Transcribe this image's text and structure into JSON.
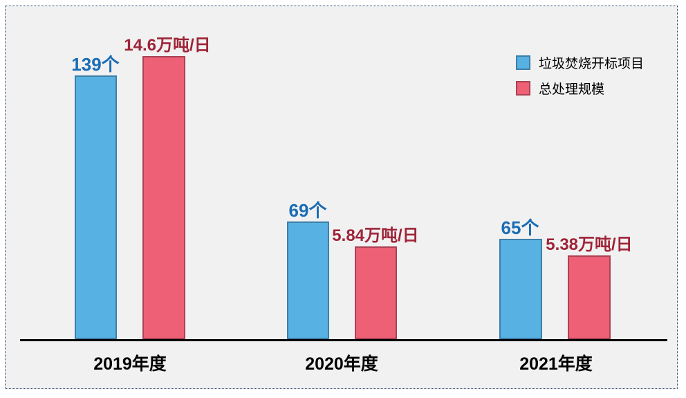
{
  "chart_data": {
    "type": "bar",
    "title": "",
    "xlabel": "",
    "ylabel": "",
    "categories": [
      "2019年度",
      "2020年度",
      "2021年度"
    ],
    "series": [
      {
        "name": "垃圾焚烧开标项目",
        "unit": "个",
        "values": [
          139,
          69,
          65
        ],
        "labels": [
          "139个",
          "69个",
          "65个"
        ],
        "fill_color": "#57B1E2",
        "border_color": "#3C7FA9",
        "label_color": "#1A6CB5"
      },
      {
        "name": "总处理规模",
        "unit": "万吨/日",
        "values": [
          14.6,
          5.84,
          5.38
        ],
        "labels": [
          "14.6万吨/日",
          "5.84万吨/日",
          "5.38万吨/日"
        ],
        "fill_color": "#ED6075",
        "border_color": "#AB4255",
        "label_color": "#9E2438"
      }
    ],
    "legend_position": "top-right",
    "grid": false,
    "axes": {
      "x_axis_line": true,
      "y_axis_line": false,
      "y_ticks_visible": false,
      "data_labels_visible": true
    }
  },
  "colors": {
    "panel_background": "#f1f1f1",
    "page_background": "#ffffff",
    "panel_dotted_border": "#26436f",
    "axis_line": "#000000",
    "category_label": "#000000",
    "legend_text": "#000000"
  }
}
